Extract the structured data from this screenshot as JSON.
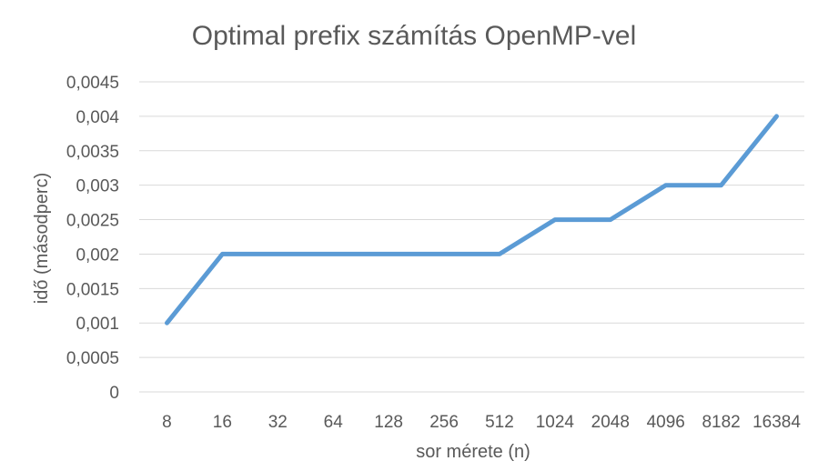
{
  "chart_data": {
    "type": "line",
    "title": "Optimal prefix számítás OpenMP-vel",
    "xlabel": "sor mérete (n)",
    "ylabel": "idő (másodperc)",
    "categories": [
      "8",
      "16",
      "32",
      "64",
      "128",
      "256",
      "512",
      "1024",
      "2048",
      "4096",
      "8182",
      "16384"
    ],
    "series": [
      {
        "values": [
          0.001,
          0.002,
          0.002,
          0.002,
          0.002,
          0.002,
          0.002,
          0.0025,
          0.0025,
          0.003,
          0.003,
          0.004
        ],
        "color": "#5b9bd5"
      }
    ],
    "ylim": [
      0,
      0.0045
    ],
    "yticks": [
      0,
      0.0005,
      0.001,
      0.0015,
      0.002,
      0.0025,
      0.003,
      0.0035,
      0.004,
      0.0045
    ],
    "ytick_labels": [
      "0",
      "0,0005",
      "0,001",
      "0,0015",
      "0,002",
      "0,0025",
      "0,003",
      "0,0035",
      "0,004",
      "0,0045"
    ],
    "grid": true,
    "legend": "none",
    "colors": {
      "gridline": "#d9d9d9",
      "text": "#595959"
    }
  }
}
